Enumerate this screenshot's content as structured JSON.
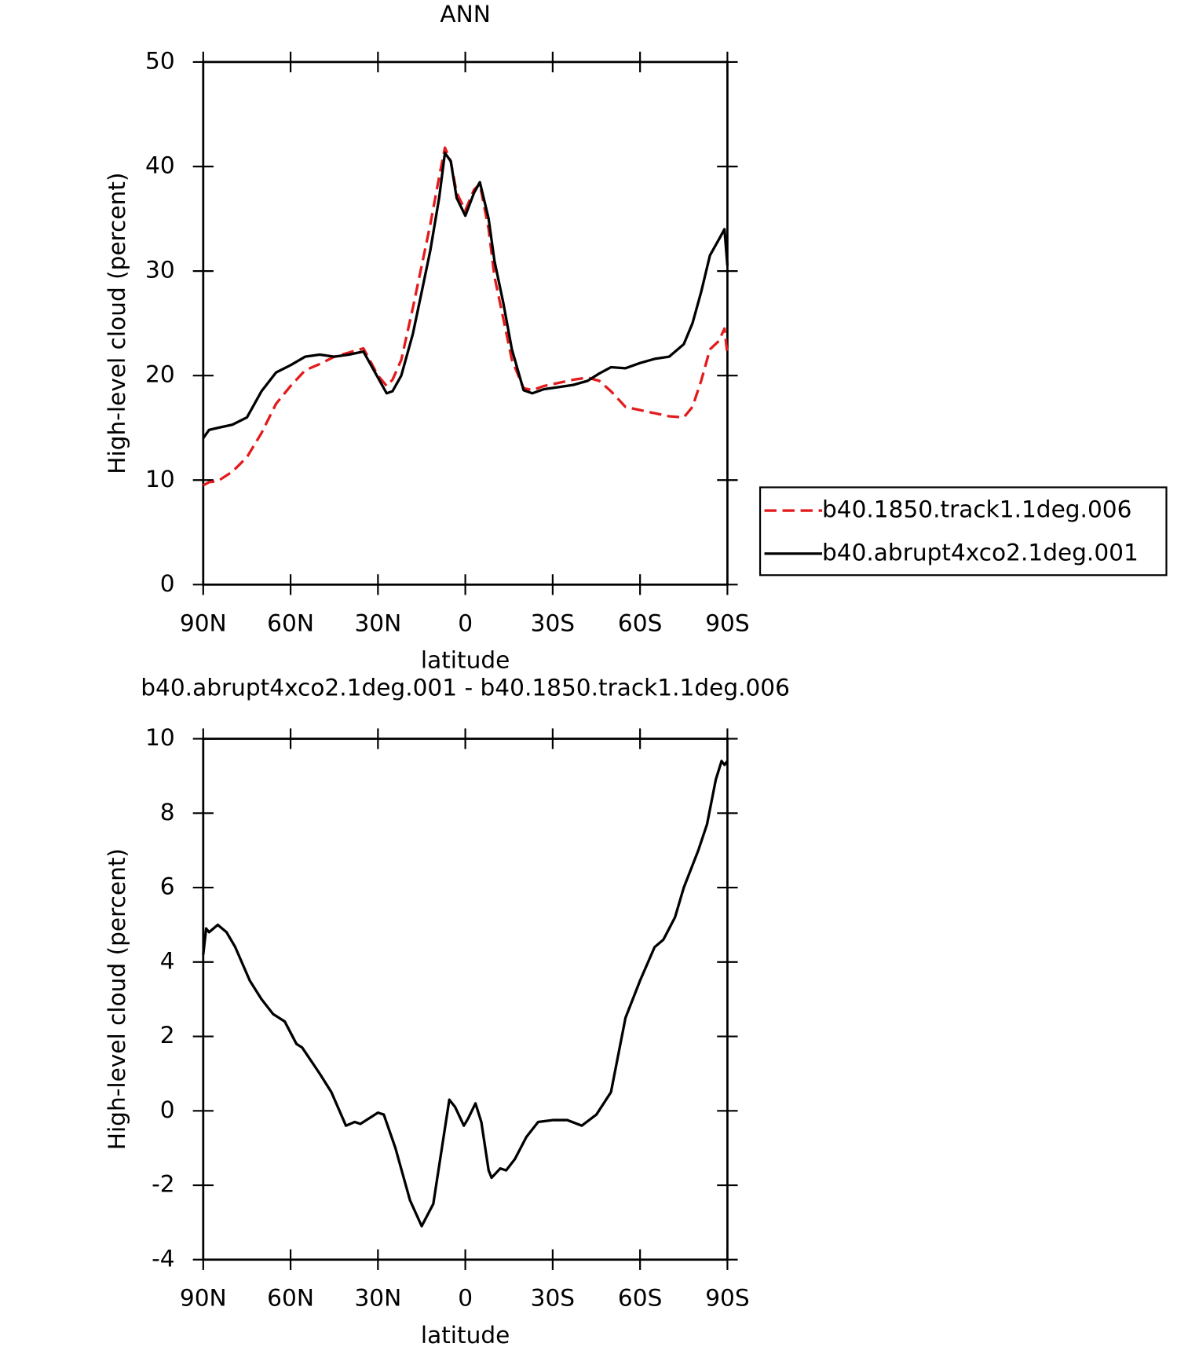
{
  "chart_data": [
    {
      "type": "line",
      "title": "ANN",
      "xlabel": "latitude",
      "ylabel": "High-level cloud (percent)",
      "x": [
        90,
        88,
        85,
        80,
        75,
        70,
        65,
        60,
        55,
        50,
        45,
        40,
        35,
        30,
        27,
        25,
        22,
        18,
        15,
        12,
        9,
        7,
        5,
        3,
        0,
        -3,
        -5,
        -8,
        -10,
        -13,
        -16,
        -20,
        -23,
        -27,
        -32,
        -37,
        -42,
        -46,
        -50,
        -55,
        -60,
        -65,
        -70,
        -75,
        -78,
        -81,
        -84,
        -87,
        -89,
        -90
      ],
      "series": [
        {
          "name": "b40.1850.track1.1deg.006",
          "color": "#e41a1c",
          "dash": true,
          "values": [
            9.5,
            9.8,
            9.9,
            10.8,
            12.2,
            14.5,
            17.3,
            19,
            20.5,
            21.1,
            21.8,
            22.2,
            22.6,
            20,
            19,
            19.6,
            21.5,
            26.5,
            30.5,
            34.5,
            39,
            41.8,
            40.5,
            37.5,
            35.8,
            37.8,
            38.3,
            34,
            29.5,
            25.5,
            21.5,
            18.8,
            18.6,
            19,
            19.3,
            19.6,
            19.8,
            19.5,
            18.5,
            17,
            16.7,
            16.4,
            16.1,
            16,
            17,
            19.5,
            22.5,
            23.3,
            24.5,
            22
          ]
        },
        {
          "name": "b40.abrupt4xco2.1deg.001",
          "color": "#000000",
          "dash": false,
          "values": [
            14,
            14.8,
            15,
            15.3,
            16,
            18.5,
            20.3,
            21,
            21.8,
            22,
            21.8,
            22,
            22.3,
            19.8,
            18.3,
            18.5,
            20,
            24,
            28,
            32,
            37,
            41.3,
            40.5,
            37,
            35.3,
            37.5,
            38.5,
            35,
            31,
            27,
            22.5,
            18.6,
            18.3,
            18.7,
            18.9,
            19.1,
            19.5,
            20.2,
            20.8,
            20.7,
            21.2,
            21.6,
            21.8,
            23,
            25,
            28,
            31.5,
            33,
            34,
            30.5
          ]
        }
      ],
      "xlim": [
        90,
        -90
      ],
      "xticks": [
        {
          "value": 90,
          "label": "90N"
        },
        {
          "value": 60,
          "label": "60N"
        },
        {
          "value": 30,
          "label": "30N"
        },
        0,
        {
          "value": -30,
          "label": "30S"
        },
        {
          "value": -60,
          "label": "60S"
        },
        {
          "value": -90,
          "label": "90S"
        }
      ],
      "ylim": [
        0,
        50
      ],
      "yticks": [
        0,
        10,
        20,
        30,
        40,
        50
      ],
      "legend": "right"
    },
    {
      "type": "line",
      "title": "b40.abrupt4xco2.1deg.001 - b40.1850.track1.1deg.006",
      "xlabel": "latitude",
      "ylabel": "High-level cloud (percent)",
      "x": [
        90,
        89,
        88,
        85,
        82,
        79,
        74,
        70,
        66,
        62,
        58,
        56,
        50,
        46,
        41,
        38,
        36,
        30,
        28,
        24,
        19,
        15,
        11,
        5.5,
        3.5,
        0.5,
        -1,
        -3.5,
        -5.5,
        -8,
        -9,
        -12,
        -14,
        -17,
        -21,
        -25,
        -30,
        -35,
        -40,
        -45,
        -50,
        -55,
        -60,
        -65,
        -68,
        -72,
        -75,
        -80,
        -83,
        -86,
        -88,
        -89,
        -90
      ],
      "series": [
        {
          "name": "b40.abrupt4xco2.1deg.001 - b40.1850.track1.1deg.006",
          "color": "#000000",
          "dash": false,
          "values": [
            4.2,
            4.9,
            4.8,
            5,
            4.8,
            4.4,
            3.5,
            3,
            2.6,
            2.4,
            1.8,
            1.7,
            1,
            0.5,
            -0.4,
            -0.3,
            -0.35,
            -0.05,
            -0.1,
            -1,
            -2.4,
            -3.1,
            -2.5,
            0.3,
            0.1,
            -0.4,
            -0.2,
            0.2,
            -0.3,
            -1.6,
            -1.8,
            -1.55,
            -1.6,
            -1.3,
            -0.7,
            -0.3,
            -0.25,
            -0.25,
            -0.4,
            -0.1,
            0.5,
            2.5,
            3.5,
            4.4,
            4.6,
            5.2,
            6,
            7,
            7.7,
            8.9,
            9.4,
            9.3,
            9.4
          ]
        }
      ],
      "xlim": [
        90,
        -90
      ],
      "xticks": [
        {
          "value": 90,
          "label": "90N"
        },
        {
          "value": 60,
          "label": "60N"
        },
        {
          "value": 30,
          "label": "30N"
        },
        0,
        {
          "value": -30,
          "label": "30S"
        },
        {
          "value": -60,
          "label": "60S"
        },
        {
          "value": -90,
          "label": "90S"
        }
      ],
      "ylim": [
        -4,
        10
      ],
      "yticks": [
        -4,
        -2,
        0,
        2,
        4,
        6,
        8,
        10
      ]
    }
  ]
}
